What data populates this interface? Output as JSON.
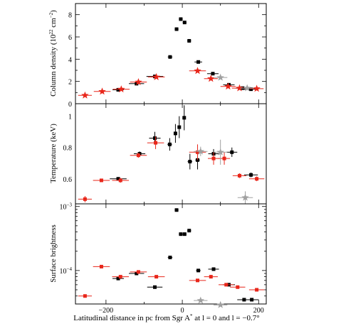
{
  "chart_data": [
    {
      "type": "scatter",
      "panel": "column-density",
      "ylabel": "Column density (10^22 cm^-2)",
      "ylabel_parts": {
        "main": "Column density (10",
        "exp1": "22",
        "mid": " cm",
        "exp2": "−2",
        "end": ")"
      },
      "xlim": [
        -280,
        220
      ],
      "ylim": [
        0,
        9
      ],
      "yscale": "linear",
      "yticks": [
        0,
        2,
        4,
        6,
        8
      ],
      "ytick_labels": [
        "0",
        "2",
        "4",
        "6",
        "8"
      ],
      "series": [
        {
          "color": "#000000",
          "marker": "square",
          "points": [
            {
              "x": -168,
              "y": 1.25,
              "xerr": 15
            },
            {
              "x": -120,
              "y": 1.8,
              "xerr": 20
            },
            {
              "x": -72,
              "y": 2.45,
              "xerr": 22
            },
            {
              "x": -32,
              "y": 4.2,
              "xerr": 6
            },
            {
              "x": -15,
              "y": 6.7,
              "xerr": 5
            },
            {
              "x": -4,
              "y": 7.6,
              "xerr": 5
            },
            {
              "x": 6,
              "y": 7.3,
              "xerr": 5
            },
            {
              "x": 18,
              "y": 5.65,
              "xerr": 5
            },
            {
              "x": 42,
              "y": 3.75,
              "xerr": 10
            },
            {
              "x": 80,
              "y": 2.7,
              "xerr": 15
            },
            {
              "x": 122,
              "y": 1.7,
              "xerr": 15
            },
            {
              "x": 158,
              "y": 1.4,
              "xerr": 18
            },
            {
              "x": 180,
              "y": 1.3,
              "xerr": 18
            }
          ]
        },
        {
          "color": "#e8261a",
          "marker": "star",
          "points": [
            {
              "x": -255,
              "y": 0.75,
              "xerr": 18
            },
            {
              "x": -210,
              "y": 1.1,
              "xerr": 22
            },
            {
              "x": -160,
              "y": 1.3,
              "xerr": 22
            },
            {
              "x": -115,
              "y": 1.95,
              "xerr": 22
            },
            {
              "x": -68,
              "y": 2.4,
              "xerr": 22
            },
            {
              "x": 40,
              "y": 2.95,
              "xerr": 22
            },
            {
              "x": 75,
              "y": 2.25,
              "xerr": 18
            },
            {
              "x": 120,
              "y": 1.55,
              "xerr": 20
            },
            {
              "x": 150,
              "y": 1.4,
              "xerr": 20
            },
            {
              "x": 195,
              "y": 1.35,
              "xerr": 18
            }
          ]
        },
        {
          "color": "#a0a0a0",
          "marker": "star",
          "points": [
            {
              "x": 100,
              "y": 2.35,
              "xerr": 18
            },
            {
              "x": 170,
              "y": 1.4,
              "xerr": 18
            }
          ]
        }
      ]
    },
    {
      "type": "scatter",
      "panel": "temperature",
      "ylabel": "Temperature (keV)",
      "xlim": [
        -280,
        220
      ],
      "ylim": [
        0.44,
        1.08
      ],
      "yscale": "linear",
      "yticks": [
        0.6,
        0.8,
        1.0
      ],
      "ytick_labels": [
        "0.6",
        "0.8",
        "1"
      ],
      "series": [
        {
          "color": "#000000",
          "marker": "square",
          "points": [
            {
              "x": -168,
              "y": 0.6,
              "xerr": 22,
              "yerr": 0.01
            },
            {
              "x": -112,
              "y": 0.76,
              "xerr": 15,
              "yerr": 0.015
            },
            {
              "x": -72,
              "y": 0.86,
              "xerr": 15,
              "yerr": 0.04
            },
            {
              "x": -33,
              "y": 0.82,
              "xerr": 6,
              "yerr": 0.04
            },
            {
              "x": -18,
              "y": 0.89,
              "xerr": 4,
              "yerr": 0.06
            },
            {
              "x": -8,
              "y": 0.93,
              "xerr": 4,
              "yerr": 0.07
            },
            {
              "x": 5,
              "y": 0.99,
              "xerr": 4,
              "yerr": 0.08
            },
            {
              "x": 20,
              "y": 0.71,
              "xerr": 6,
              "yerr": 0.05
            },
            {
              "x": 40,
              "y": 0.72,
              "xerr": 6,
              "yerr": 0.06
            },
            {
              "x": 82,
              "y": 0.76,
              "xerr": 14,
              "yerr": 0.03
            },
            {
              "x": 130,
              "y": 0.77,
              "xerr": 14,
              "yerr": 0.03
            },
            {
              "x": 180,
              "y": 0.625,
              "xerr": 18,
              "yerr": 0.015
            }
          ]
        },
        {
          "color": "#e8261a",
          "marker": "square",
          "points": [
            {
              "x": -255,
              "y": 0.47,
              "xerr": 18,
              "yerr": 0.02
            },
            {
              "x": -212,
              "y": 0.59,
              "xerr": 22,
              "yerr": 0.01
            },
            {
              "x": -162,
              "y": 0.59,
              "xerr": 22,
              "yerr": 0.015
            },
            {
              "x": -115,
              "y": 0.75,
              "xerr": 22,
              "yerr": 0.015
            },
            {
              "x": -70,
              "y": 0.83,
              "xerr": 22,
              "yerr": 0.04
            },
            {
              "x": 40,
              "y": 0.77,
              "xerr": 22,
              "yerr": 0.05
            },
            {
              "x": 82,
              "y": 0.73,
              "xerr": 15,
              "yerr": 0.04
            },
            {
              "x": 110,
              "y": 0.73,
              "xerr": 15,
              "yerr": 0.04
            },
            {
              "x": 150,
              "y": 0.62,
              "xerr": 18,
              "yerr": 0.015
            },
            {
              "x": 195,
              "y": 0.6,
              "xerr": 20,
              "yerr": 0.015
            }
          ]
        },
        {
          "color": "#a0a0a0",
          "marker": "star",
          "points": [
            {
              "x": 48,
              "y": 0.775,
              "xerr": 18,
              "yerr": 0.03
            },
            {
              "x": 100,
              "y": 0.77,
              "xerr": 18,
              "yerr": 0.08
            },
            {
              "x": 165,
              "y": 0.48,
              "xerr": 20,
              "yerr": 0.04
            }
          ]
        }
      ]
    },
    {
      "type": "scatter",
      "panel": "surface-brightness",
      "ylabel": "Surface brightness",
      "xlabel": "Latitudinal distance in pc from Sgr A* at l = 0  and l = −0.7°",
      "xlabel_parts": {
        "pre": "Latitudinal distance in pc from Sgr A",
        "sup": "*",
        "post": " at l = 0  and l = −0.7°"
      },
      "xlim": [
        -280,
        220
      ],
      "ylim": [
        3e-05,
        0.0011
      ],
      "yscale": "log",
      "yticks": [
        0.0001,
        0.001
      ],
      "ytick_labels": [
        {
          "base": "10",
          "exp": "−4"
        },
        {
          "base": "10",
          "exp": "−3"
        }
      ],
      "xticks": [
        -200,
        0,
        200
      ],
      "xtick_labels": [
        "−200",
        "0",
        "200"
      ],
      "series": [
        {
          "color": "#000000",
          "marker": "square",
          "points": [
            {
              "x": -168,
              "y": 7.5e-05,
              "xerr": 15
            },
            {
              "x": -120,
              "y": 9e-05,
              "xerr": 20
            },
            {
              "x": -72,
              "y": 5.5e-05,
              "xerr": 20
            },
            {
              "x": -32,
              "y": 0.00016,
              "xerr": 6
            },
            {
              "x": -15,
              "y": 0.00088,
              "xerr": 5
            },
            {
              "x": -4,
              "y": 0.00037,
              "xerr": 5
            },
            {
              "x": 6,
              "y": 0.00037,
              "xerr": 5
            },
            {
              "x": 18,
              "y": 0.00042,
              "xerr": 5
            },
            {
              "x": 42,
              "y": 0.0001,
              "xerr": 6
            },
            {
              "x": 82,
              "y": 0.000105,
              "xerr": 14
            },
            {
              "x": 122,
              "y": 6e-05,
              "xerr": 16
            },
            {
              "x": 162,
              "y": 3.5e-05,
              "xerr": 18
            },
            {
              "x": 182,
              "y": 3.5e-05,
              "xerr": 18
            }
          ]
        },
        {
          "color": "#e8261a",
          "marker": "square",
          "points": [
            {
              "x": -255,
              "y": 4e-05,
              "xerr": 18
            },
            {
              "x": -212,
              "y": 0.000115,
              "xerr": 22
            },
            {
              "x": -162,
              "y": 8e-05,
              "xerr": 22
            },
            {
              "x": -115,
              "y": 9.5e-05,
              "xerr": 22
            },
            {
              "x": -68,
              "y": 8e-05,
              "xerr": 22
            },
            {
              "x": 40,
              "y": 7e-05,
              "xerr": 22
            },
            {
              "x": 75,
              "y": 8e-05,
              "xerr": 18
            },
            {
              "x": 115,
              "y": 6e-05,
              "xerr": 20
            },
            {
              "x": 145,
              "y": 5.5e-05,
              "xerr": 20
            },
            {
              "x": 195,
              "y": 5e-05,
              "xerr": 20
            }
          ]
        },
        {
          "color": "#a0a0a0",
          "marker": "star",
          "points": [
            {
              "x": 48,
              "y": 3.4e-05,
              "xerr": 18
            },
            {
              "x": 100,
              "y": 2.9e-05,
              "xerr": 18
            }
          ]
        }
      ]
    }
  ]
}
